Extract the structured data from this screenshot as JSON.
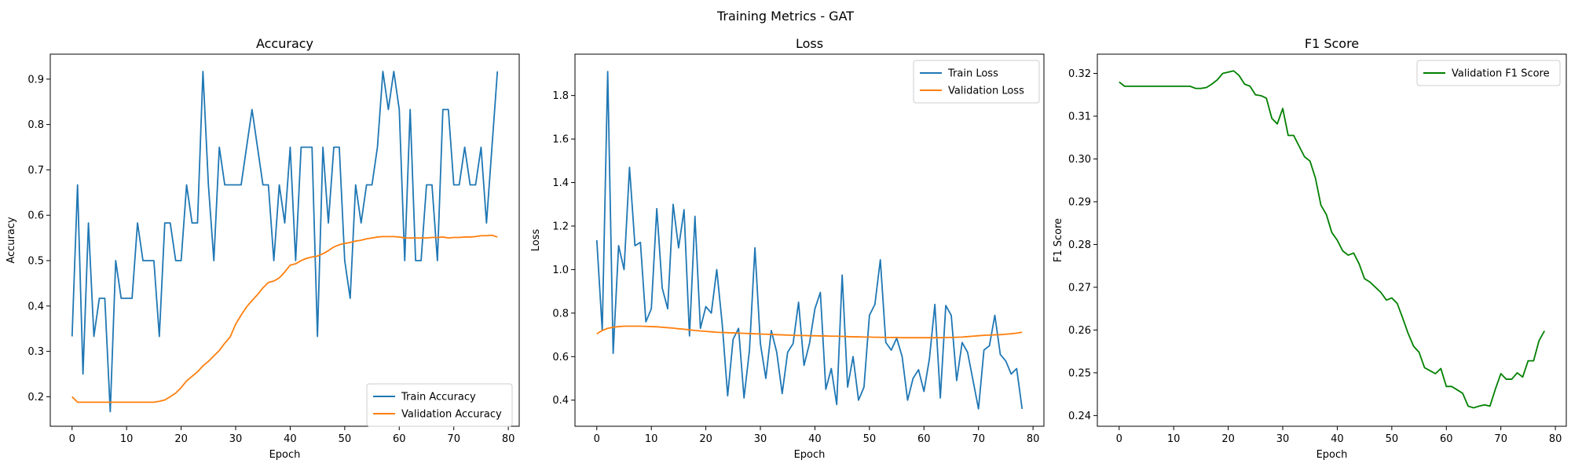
{
  "figure": {
    "suptitle": "Training Metrics - GAT"
  },
  "chart_data": [
    {
      "type": "line",
      "title": "Accuracy",
      "xlabel": "Epoch",
      "ylabel": "Accuracy",
      "xlim": [
        -4,
        82
      ],
      "ylim": [
        0.135,
        0.955
      ],
      "xticks": [
        0,
        10,
        20,
        30,
        40,
        50,
        60,
        70,
        80
      ],
      "yticks": [
        0.2,
        0.3,
        0.4,
        0.5,
        0.6,
        0.7,
        0.8,
        0.9
      ],
      "legend_position": "bottom-right",
      "series": [
        {
          "name": "Train Accuracy",
          "color": "#1f77b4",
          "values": [
            0.333,
            0.667,
            0.25,
            0.583,
            0.333,
            0.417,
            0.417,
            0.167,
            0.5,
            0.417,
            0.417,
            0.417,
            0.583,
            0.5,
            0.5,
            0.5,
            0.333,
            0.583,
            0.583,
            0.5,
            0.5,
            0.667,
            0.583,
            0.583,
            0.917,
            0.667,
            0.5,
            0.75,
            0.667,
            0.667,
            0.667,
            0.667,
            0.75,
            0.833,
            0.75,
            0.667,
            0.667,
            0.5,
            0.667,
            0.583,
            0.75,
            0.5,
            0.75,
            0.75,
            0.75,
            0.333,
            0.75,
            0.583,
            0.75,
            0.75,
            0.5,
            0.417,
            0.667,
            0.583,
            0.667,
            0.667,
            0.75,
            0.917,
            0.833,
            0.917,
            0.833,
            0.5,
            0.833,
            0.5,
            0.5,
            0.667,
            0.667,
            0.5,
            0.833,
            0.833,
            0.667,
            0.667,
            0.75,
            0.667,
            0.667,
            0.75,
            0.583,
            0.75,
            0.917
          ]
        },
        {
          "name": "Validation Accuracy",
          "color": "#ff7f0e",
          "values": [
            0.2,
            0.188,
            0.188,
            0.188,
            0.188,
            0.188,
            0.188,
            0.188,
            0.188,
            0.188,
            0.188,
            0.188,
            0.188,
            0.188,
            0.188,
            0.188,
            0.19,
            0.193,
            0.2,
            0.208,
            0.22,
            0.235,
            0.245,
            0.255,
            0.268,
            0.278,
            0.29,
            0.302,
            0.318,
            0.332,
            0.36,
            0.38,
            0.398,
            0.412,
            0.425,
            0.44,
            0.452,
            0.455,
            0.462,
            0.475,
            0.49,
            0.493,
            0.5,
            0.505,
            0.508,
            0.51,
            0.515,
            0.522,
            0.53,
            0.535,
            0.538,
            0.54,
            0.543,
            0.545,
            0.548,
            0.55,
            0.552,
            0.553,
            0.553,
            0.553,
            0.552,
            0.55,
            0.55,
            0.55,
            0.55,
            0.55,
            0.551,
            0.551,
            0.552,
            0.55,
            0.551,
            0.551,
            0.552,
            0.552,
            0.553,
            0.555,
            0.555,
            0.556,
            0.552
          ]
        }
      ]
    },
    {
      "type": "line",
      "title": "Loss",
      "xlabel": "Epoch",
      "ylabel": "Loss",
      "xlim": [
        -4,
        82
      ],
      "ylim": [
        0.28,
        1.99
      ],
      "xticks": [
        0,
        10,
        20,
        30,
        40,
        50,
        60,
        70,
        80
      ],
      "yticks": [
        0.4,
        0.6,
        0.8,
        1.0,
        1.2,
        1.4,
        1.6,
        1.8
      ],
      "ytick_labels": [
        "0.4",
        "0.6",
        "0.8",
        "1.0",
        "1.2",
        "1.4",
        "1.6",
        "1.8"
      ],
      "legend_position": "top-right",
      "series": [
        {
          "name": "Train Loss",
          "color": "#1f77b4",
          "values": [
            1.135,
            0.72,
            1.91,
            0.615,
            1.11,
            1.0,
            1.47,
            1.11,
            1.125,
            0.76,
            0.82,
            1.28,
            0.915,
            0.82,
            1.3,
            1.1,
            1.275,
            0.695,
            1.245,
            0.73,
            0.83,
            0.8,
            1.0,
            0.75,
            0.42,
            0.68,
            0.73,
            0.41,
            0.63,
            1.1,
            0.66,
            0.5,
            0.72,
            0.62,
            0.43,
            0.62,
            0.66,
            0.85,
            0.56,
            0.66,
            0.82,
            0.895,
            0.45,
            0.545,
            0.38,
            0.975,
            0.46,
            0.6,
            0.4,
            0.46,
            0.79,
            0.84,
            1.045,
            0.665,
            0.63,
            0.685,
            0.6,
            0.4,
            0.5,
            0.54,
            0.44,
            0.59,
            0.84,
            0.41,
            0.835,
            0.79,
            0.49,
            0.665,
            0.62,
            0.49,
            0.36,
            0.63,
            0.65,
            0.79,
            0.61,
            0.58,
            0.52,
            0.545,
            0.36
          ]
        },
        {
          "name": "Validation Loss",
          "color": "#ff7f0e",
          "values": [
            0.705,
            0.72,
            0.73,
            0.735,
            0.738,
            0.74,
            0.74,
            0.74,
            0.74,
            0.739,
            0.738,
            0.737,
            0.735,
            0.733,
            0.731,
            0.728,
            0.726,
            0.723,
            0.72,
            0.718,
            0.716,
            0.714,
            0.712,
            0.711,
            0.71,
            0.709,
            0.708,
            0.707,
            0.706,
            0.705,
            0.704,
            0.703,
            0.702,
            0.701,
            0.7,
            0.699,
            0.698,
            0.697,
            0.697,
            0.696,
            0.696,
            0.695,
            0.695,
            0.694,
            0.694,
            0.693,
            0.692,
            0.691,
            0.691,
            0.69,
            0.69,
            0.689,
            0.689,
            0.688,
            0.688,
            0.688,
            0.687,
            0.687,
            0.687,
            0.687,
            0.687,
            0.687,
            0.687,
            0.687,
            0.688,
            0.688,
            0.689,
            0.69,
            0.692,
            0.694,
            0.696,
            0.698,
            0.699,
            0.7,
            0.701,
            0.703,
            0.705,
            0.708,
            0.712
          ]
        }
      ]
    },
    {
      "type": "line",
      "title": "F1 Score",
      "xlabel": "Epoch",
      "ylabel": "F1 Score",
      "xlim": [
        -4,
        82
      ],
      "ylim": [
        0.2375,
        0.3245
      ],
      "xticks": [
        0,
        10,
        20,
        30,
        40,
        50,
        60,
        70,
        80
      ],
      "yticks": [
        0.24,
        0.25,
        0.26,
        0.27,
        0.28,
        0.29,
        0.3,
        0.31,
        0.32
      ],
      "ytick_labels": [
        "0.24",
        "0.25",
        "0.26",
        "0.27",
        "0.28",
        "0.29",
        "0.30",
        "0.31",
        "0.32"
      ],
      "legend_position": "top-right",
      "series": [
        {
          "name": "Validation F1 Score",
          "color": "#008000",
          "values": [
            0.318,
            0.317,
            0.317,
            0.317,
            0.317,
            0.317,
            0.317,
            0.317,
            0.317,
            0.317,
            0.317,
            0.317,
            0.317,
            0.317,
            0.3165,
            0.3165,
            0.3167,
            0.3175,
            0.3185,
            0.32,
            0.3203,
            0.3206,
            0.3195,
            0.3175,
            0.317,
            0.315,
            0.3148,
            0.3142,
            0.3095,
            0.3082,
            0.3118,
            0.3055,
            0.3055,
            0.303,
            0.3005,
            0.2995,
            0.2955,
            0.2892,
            0.287,
            0.2828,
            0.281,
            0.2785,
            0.2775,
            0.278,
            0.2755,
            0.272,
            0.2712,
            0.27,
            0.2688,
            0.267,
            0.2675,
            0.2662,
            0.2628,
            0.2592,
            0.2562,
            0.2548,
            0.2512,
            0.2505,
            0.2498,
            0.251,
            0.2468,
            0.2468,
            0.246,
            0.2452,
            0.2422,
            0.2418,
            0.2422,
            0.2425,
            0.2422,
            0.2462,
            0.2498,
            0.2485,
            0.2485,
            0.25,
            0.249,
            0.2528,
            0.2528,
            0.2575,
            0.2598
          ]
        }
      ]
    }
  ]
}
